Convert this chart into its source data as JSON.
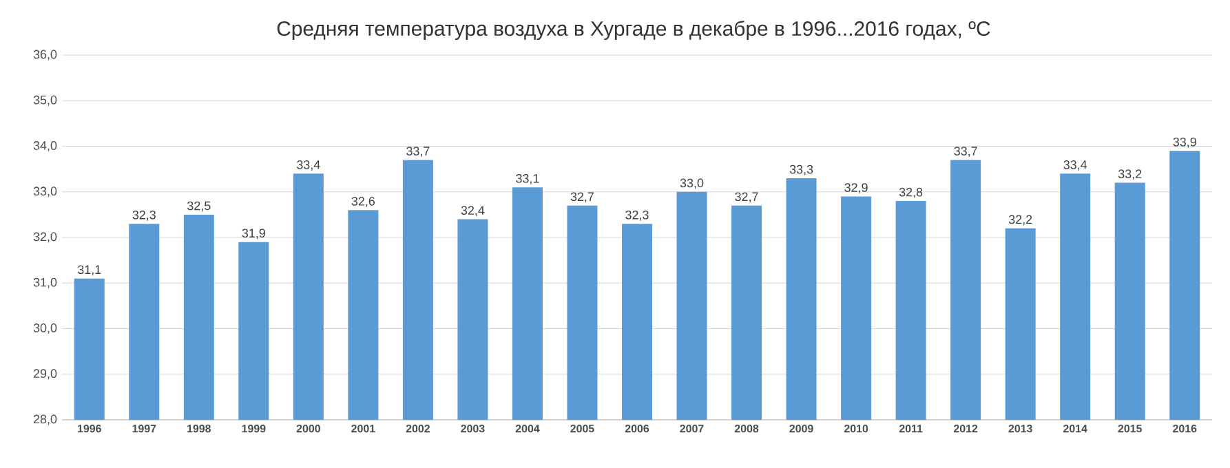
{
  "chart_data": {
    "type": "bar",
    "title": "Средняя температура воздуха в Хургаде в декабре в 1996...2016 годах, ºC",
    "categories": [
      "1996",
      "1997",
      "1998",
      "1999",
      "2000",
      "2001",
      "2002",
      "2003",
      "2004",
      "2005",
      "2006",
      "2007",
      "2008",
      "2009",
      "2010",
      "2011",
      "2012",
      "2013",
      "2014",
      "2015",
      "2016"
    ],
    "values": [
      31.1,
      32.3,
      32.5,
      31.9,
      33.4,
      32.6,
      33.7,
      32.4,
      33.1,
      32.7,
      32.3,
      33.0,
      32.7,
      33.3,
      32.9,
      32.8,
      33.7,
      32.2,
      33.4,
      33.2,
      33.9
    ],
    "value_labels": [
      "31,1",
      "32,3",
      "32,5",
      "31,9",
      "33,4",
      "32,6",
      "33,7",
      "32,4",
      "33,1",
      "32,7",
      "32,3",
      "33,0",
      "32,7",
      "33,3",
      "32,9",
      "32,8",
      "33,7",
      "32,2",
      "33,4",
      "33,2",
      "33,9"
    ],
    "color": "#5b9bd5",
    "ylim": [
      28,
      36
    ],
    "yticks": [
      {
        "value": 28,
        "label": "28,0"
      },
      {
        "value": 29,
        "label": "29,0"
      },
      {
        "value": 30,
        "label": "30,0"
      },
      {
        "value": 31,
        "label": "31,0"
      },
      {
        "value": 32,
        "label": "32,0"
      },
      {
        "value": 33,
        "label": "33,0"
      },
      {
        "value": 34,
        "label": "34,0"
      },
      {
        "value": 35,
        "label": "35,0"
      },
      {
        "value": 36,
        "label": "36,0"
      }
    ],
    "grid": "y"
  }
}
